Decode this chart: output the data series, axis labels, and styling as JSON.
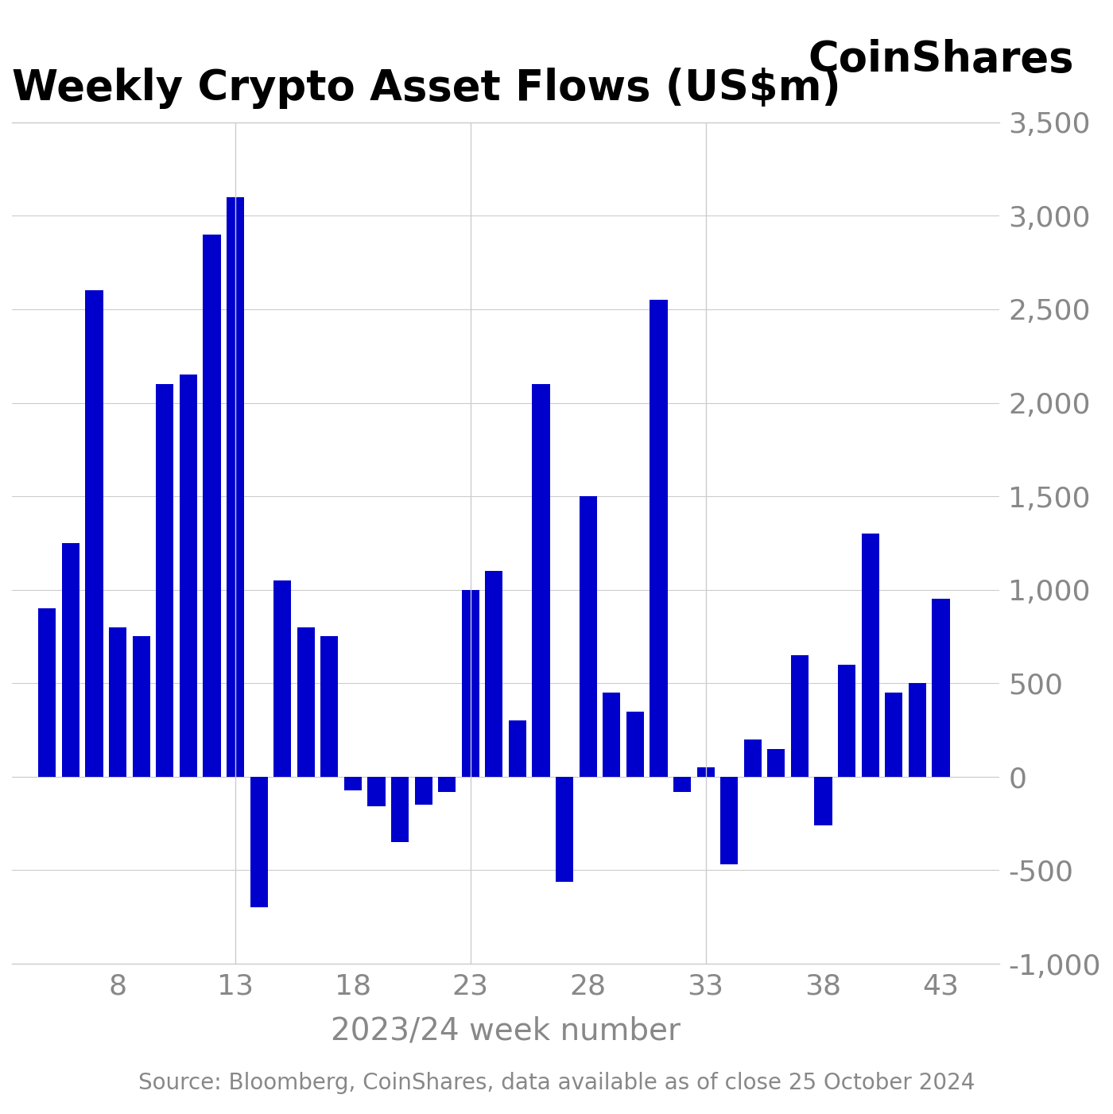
{
  "title": "Weekly Crypto Asset Flows (US$m)",
  "coinshares_label": "CoinShares",
  "xlabel": "2023/24 week number",
  "source_text": "Source: Bloomberg, CoinShares, data available as of close 25 October 2024",
  "bar_color": "#0000CC",
  "background_color": "#ffffff",
  "ylim": [
    -1000,
    3500
  ],
  "yticks": [
    -1000,
    -500,
    0,
    500,
    1000,
    1500,
    2000,
    2500,
    3000,
    3500
  ],
  "xticks": [
    8,
    13,
    18,
    23,
    28,
    33,
    38,
    43
  ],
  "weeks": [
    5,
    6,
    7,
    8,
    9,
    10,
    11,
    12,
    13,
    14,
    15,
    16,
    17,
    18,
    19,
    20,
    21,
    22,
    23,
    24,
    25,
    26,
    27,
    28,
    29,
    30,
    31,
    32,
    33,
    34,
    35,
    36,
    37,
    38,
    39,
    40,
    41,
    42,
    43
  ],
  "values": [
    900,
    1250,
    2600,
    800,
    750,
    2100,
    2150,
    2900,
    3100,
    -700,
    1050,
    800,
    750,
    -75,
    -160,
    -350,
    -150,
    -80,
    1000,
    1100,
    300,
    2100,
    -560,
    1500,
    450,
    350,
    2550,
    -80,
    50,
    -470,
    200,
    150,
    650,
    -260,
    600,
    1300,
    450,
    500,
    950
  ],
  "vline_positions": [
    13,
    23,
    33
  ],
  "grid_color": "#cccccc",
  "title_fontsize": 38,
  "coinshares_fontsize": 38,
  "axis_label_fontsize": 28,
  "tick_fontsize": 26,
  "source_fontsize": 20
}
